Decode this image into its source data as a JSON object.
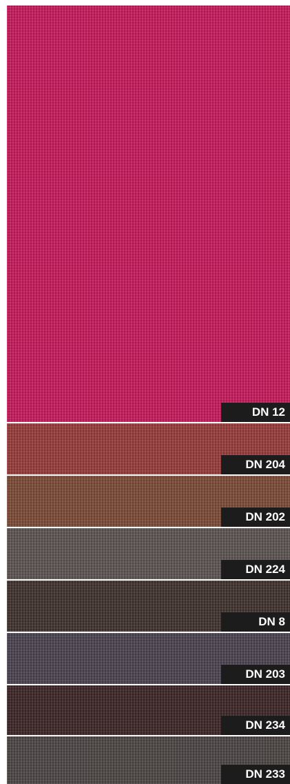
{
  "swatches": [
    {
      "label": "DN 12"
    },
    {
      "label": "DN 204"
    },
    {
      "label": "DN 202"
    },
    {
      "label": "DN 224"
    },
    {
      "label": "DN 8"
    },
    {
      "label": "DN 203"
    },
    {
      "label": "DN 234"
    },
    {
      "label": "DN 233"
    }
  ]
}
